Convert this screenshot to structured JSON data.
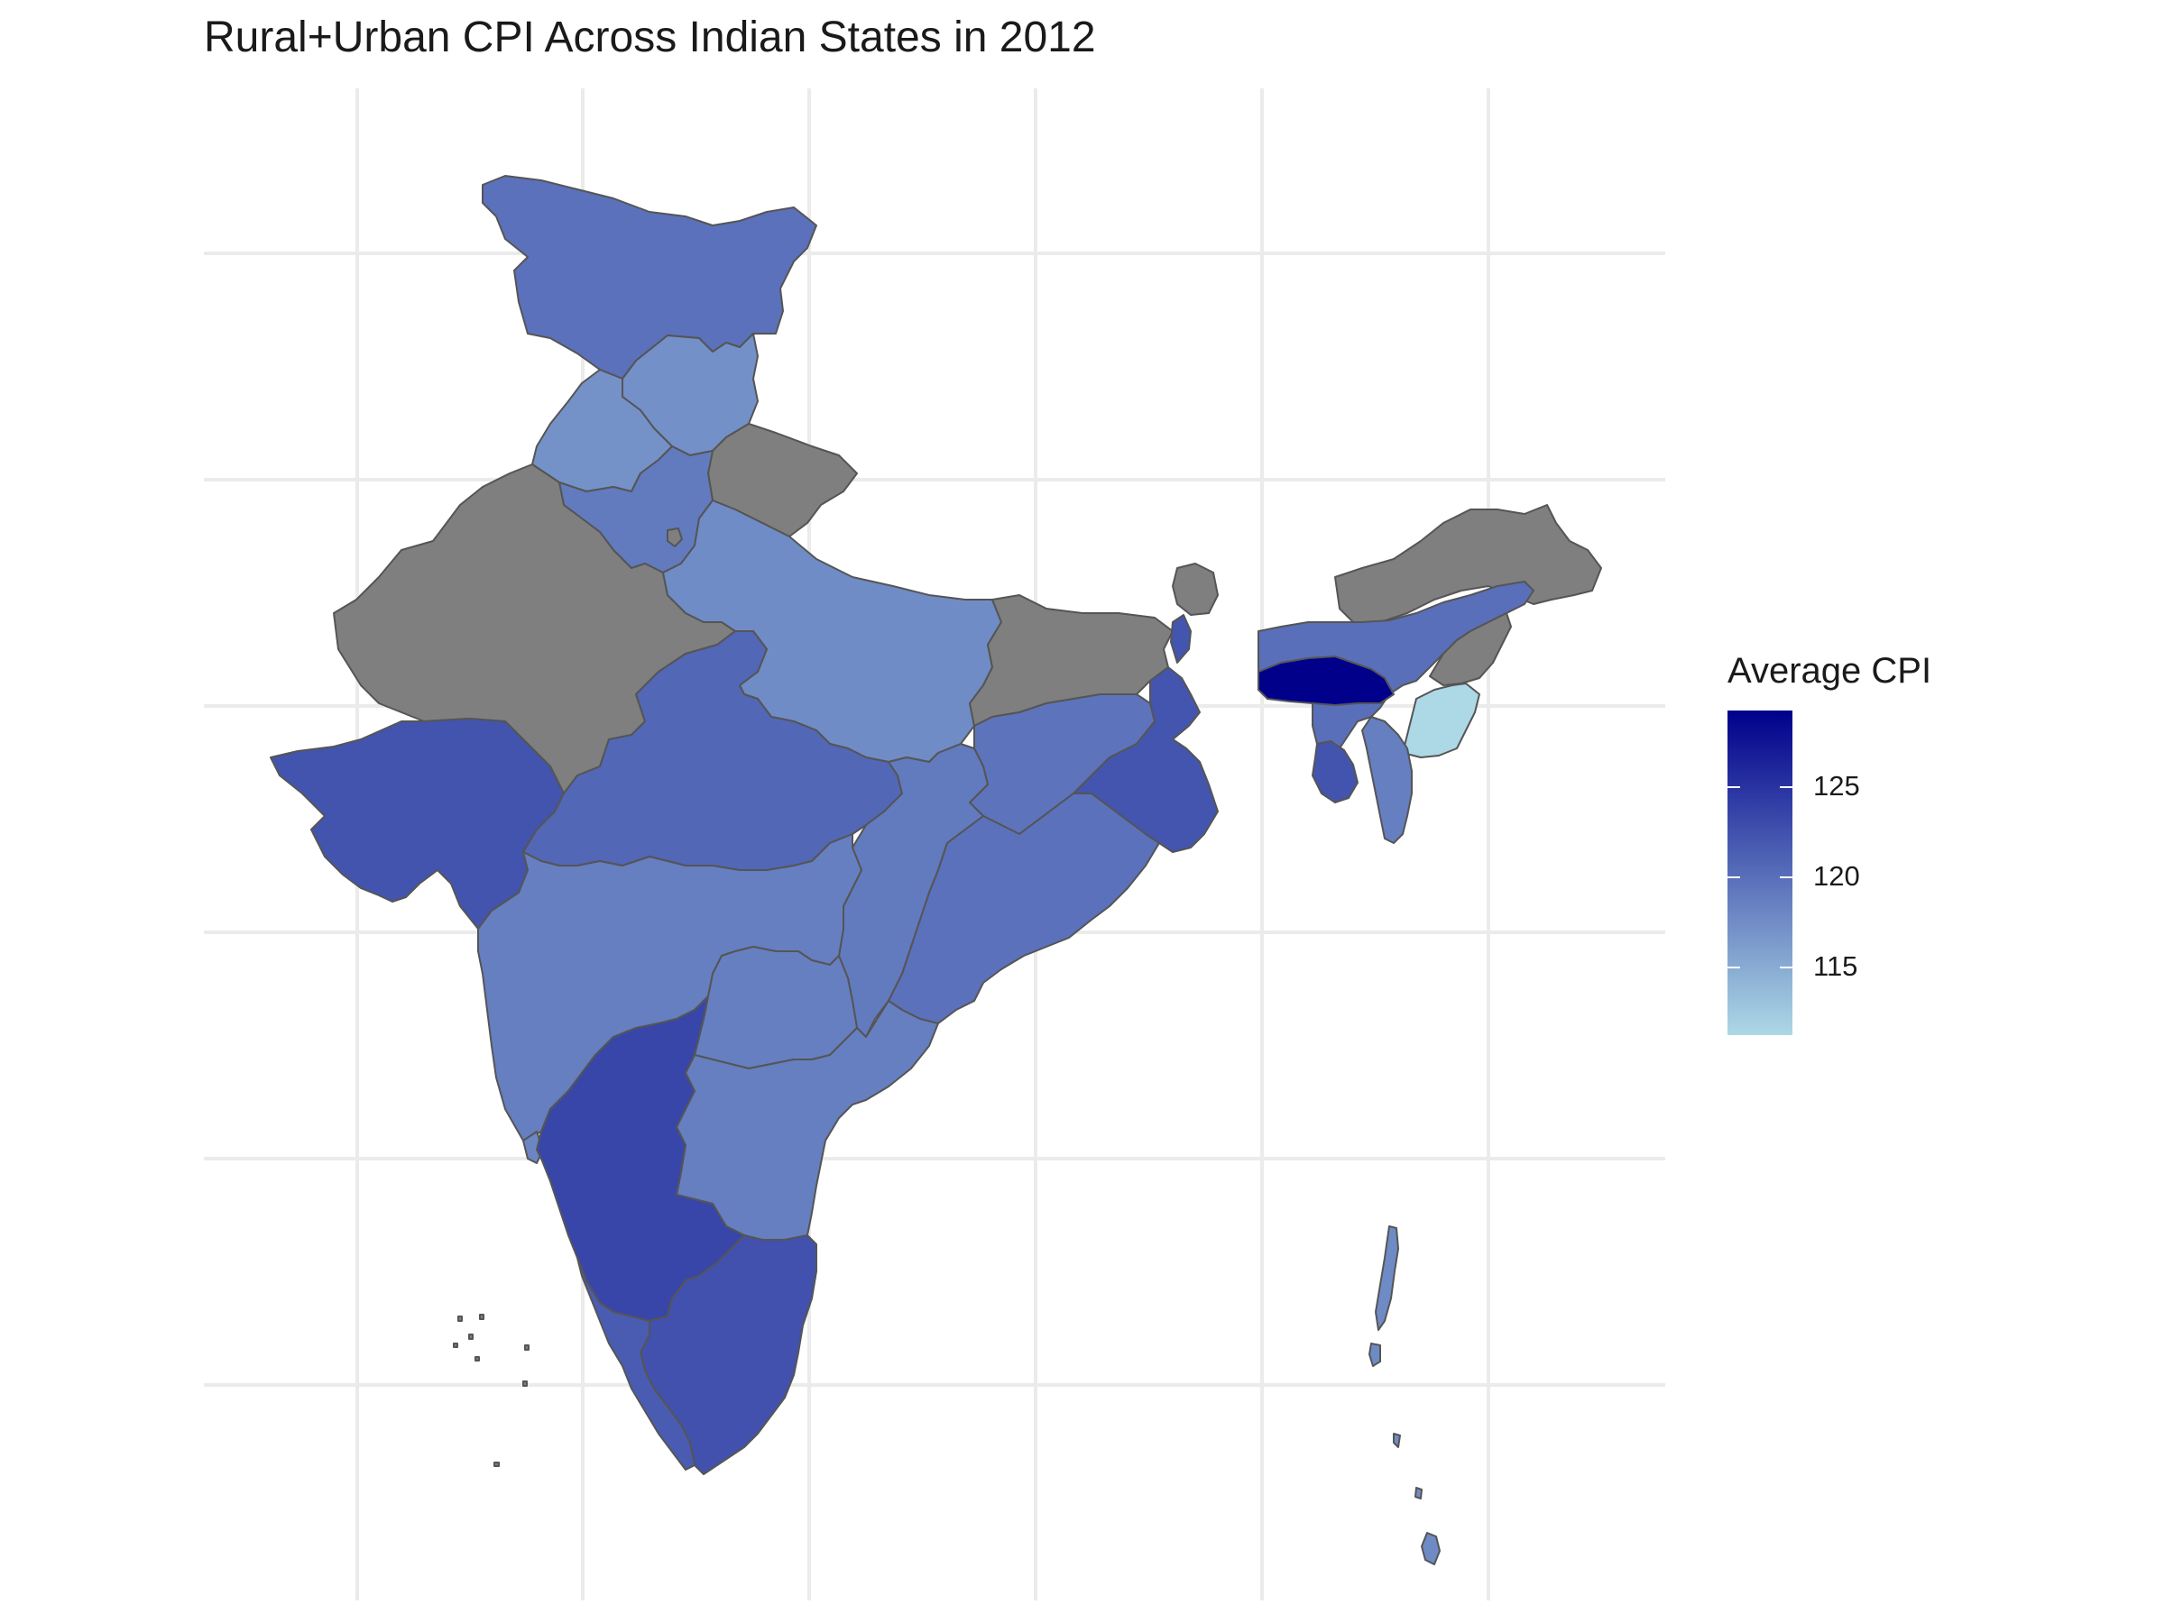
{
  "title": "Rural+Urban CPI Across Indian States in 2012",
  "legend": {
    "title": "Average CPI",
    "ticks": [
      "125",
      "120",
      "115"
    ],
    "color_low": "#add8e6",
    "color_high": "#00008b"
  },
  "map_styles": {
    "no_data_fill": "#7f7f7f",
    "border_color": "#555555",
    "grid_color": "#ebebeb"
  },
  "regions": [
    {
      "name": "Jammu and Kashmir",
      "cpi": 119.8
    },
    {
      "name": "Himachal Pradesh",
      "cpi": 117.2
    },
    {
      "name": "Punjab",
      "cpi": 117.0
    },
    {
      "name": "Uttarakhand",
      "cpi": null
    },
    {
      "name": "Haryana",
      "cpi": 119.0
    },
    {
      "name": "Delhi",
      "cpi": null
    },
    {
      "name": "Rajasthan",
      "cpi": null
    },
    {
      "name": "Uttar Pradesh",
      "cpi": 117.5
    },
    {
      "name": "Bihar",
      "cpi": null
    },
    {
      "name": "Gujarat",
      "cpi": 122.3
    },
    {
      "name": "Madhya Pradesh",
      "cpi": 120.7
    },
    {
      "name": "Jharkhand",
      "cpi": 119.6
    },
    {
      "name": "West Bengal",
      "cpi": 122.2
    },
    {
      "name": "Chhattisgarh",
      "cpi": 119.0
    },
    {
      "name": "Odisha",
      "cpi": 119.8
    },
    {
      "name": "Maharashtra",
      "cpi": 118.6
    },
    {
      "name": "Telangana",
      "cpi": 118.6
    },
    {
      "name": "Andhra Pradesh",
      "cpi": 118.6
    },
    {
      "name": "Goa",
      "cpi": 118.0
    },
    {
      "name": "Karnataka",
      "cpi": 123.5
    },
    {
      "name": "Tamil Nadu",
      "cpi": 122.6
    },
    {
      "name": "Kerala",
      "cpi": 121.6
    },
    {
      "name": "Sikkim",
      "cpi": null
    },
    {
      "name": "Arunachal Pradesh",
      "cpi": null
    },
    {
      "name": "Assam",
      "cpi": 120.0
    },
    {
      "name": "Meghalaya",
      "cpi": 129.5
    },
    {
      "name": "Nagaland",
      "cpi": null
    },
    {
      "name": "Manipur",
      "cpi": 111.0
    },
    {
      "name": "Tripura",
      "cpi": 122.3
    },
    {
      "name": "Mizoram",
      "cpi": 118.6
    },
    {
      "name": "Andaman and Nicobar Islands",
      "cpi": 117.6
    },
    {
      "name": "Lakshadweep",
      "cpi": null
    }
  ]
}
